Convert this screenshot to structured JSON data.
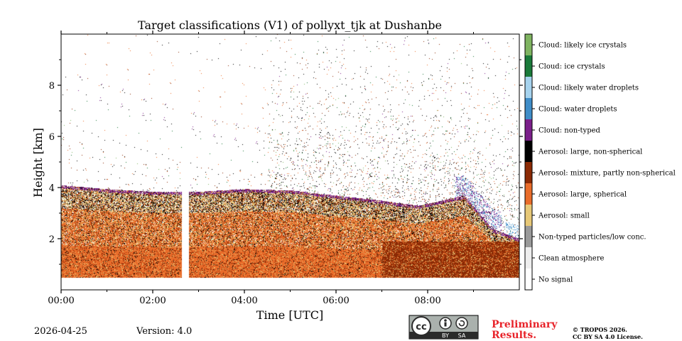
{
  "chart_data": {
    "type": "heatmap",
    "title": "Target classifications (V1) of pollyxt_tjk at Dushanbe",
    "xlabel": "Time [UTC]",
    "ylabel": "Height [km]",
    "xlim_hours": [
      0,
      10
    ],
    "ylim_km": [
      0,
      10
    ],
    "x_ticks": [
      {
        "value": 0,
        "label": "00:00"
      },
      {
        "value": 2,
        "label": "02:00"
      },
      {
        "value": 4,
        "label": "04:00"
      },
      {
        "value": 6,
        "label": "06:00"
      },
      {
        "value": 8,
        "label": "08:00"
      }
    ],
    "y_ticks": [
      {
        "value": 2,
        "label": "2"
      },
      {
        "value": 4,
        "label": "4"
      },
      {
        "value": 6,
        "label": "6"
      },
      {
        "value": 8,
        "label": "8"
      }
    ],
    "data_gap_hours": [
      2.63,
      2.78
    ],
    "min_height_km": 0.5,
    "aerosol_top_km": [
      {
        "t": 0.0,
        "h": 4.1
      },
      {
        "t": 1.0,
        "h": 3.95
      },
      {
        "t": 2.0,
        "h": 3.85
      },
      {
        "t": 2.6,
        "h": 3.85
      },
      {
        "t": 3.0,
        "h": 3.85
      },
      {
        "t": 4.0,
        "h": 3.95
      },
      {
        "t": 5.0,
        "h": 3.9
      },
      {
        "t": 6.0,
        "h": 3.7
      },
      {
        "t": 7.0,
        "h": 3.5
      },
      {
        "t": 7.8,
        "h": 3.3
      },
      {
        "t": 8.8,
        "h": 3.7
      },
      {
        "t": 9.4,
        "h": 2.4
      },
      {
        "t": 10.0,
        "h": 2.0
      }
    ],
    "classes": [
      {
        "label": "Cloud: likely ice crystals",
        "color": "#7fb461"
      },
      {
        "label": "Cloud: ice crystals",
        "color": "#1a7a3a"
      },
      {
        "label": "Cloud: likely water droplets",
        "color": "#a6d3ee"
      },
      {
        "label": "Cloud: water droplets",
        "color": "#3f8dc8"
      },
      {
        "label": "Cloud: non-typed",
        "color": "#7b1f8a"
      },
      {
        "label": "Aerosol: large, non-spherical",
        "color": "#000000"
      },
      {
        "label": "Aerosol: mixture, partly non-spherical",
        "color": "#8b2a05"
      },
      {
        "label": "Aerosol: large, spherical",
        "color": "#e96c2a"
      },
      {
        "label": "Aerosol: small",
        "color": "#e7c877"
      },
      {
        "label": "Non-typed particles/low conc.",
        "color": "#999999"
      },
      {
        "label": "Clean atmosphere",
        "color": "#eeeeee"
      },
      {
        "label": "No signal",
        "color": "#ffffff"
      }
    ]
  },
  "footer": {
    "date": "2026-04-25",
    "version": "Version: 4.0",
    "license_badge": {
      "cc": "cc",
      "by": "BY",
      "sa": "SA"
    },
    "preliminary_line1": "Preliminary",
    "preliminary_line2": "Results.",
    "copyright_line1": "© TROPOS 2026.",
    "copyright_line2": "CC BY SA 4.0 License."
  },
  "colors": {
    "preliminary": "#e8232a",
    "badge_bg": "#aab1ad",
    "badge_dark": "#2b2b2b"
  }
}
